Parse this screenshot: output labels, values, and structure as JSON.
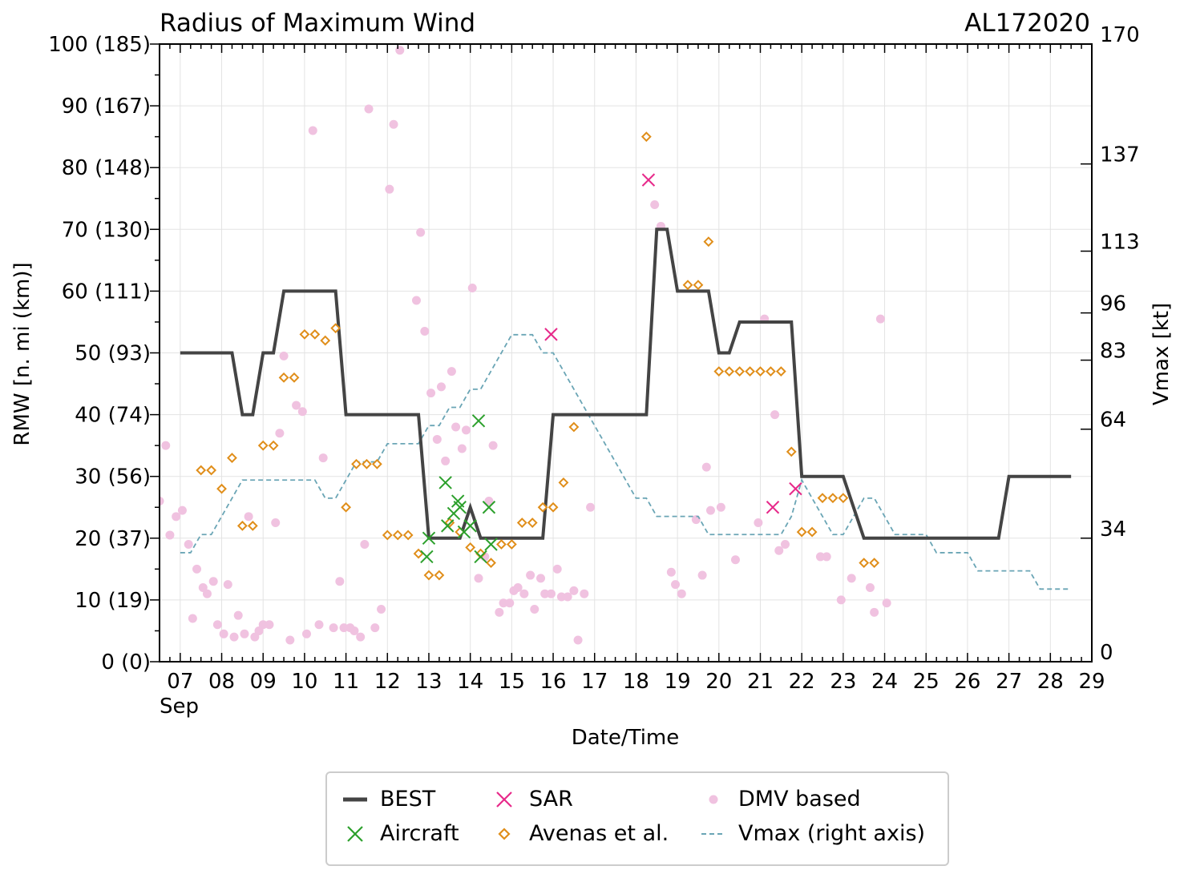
{
  "chart_data": {
    "type": "line",
    "title": "Radius of Maximum Wind",
    "storm_id": "AL172020",
    "xlabel": "Date/Time",
    "ylabel": "RMW [n. mi (km)]",
    "y2label": "Vmax [kt]",
    "xlim": [
      6.5,
      29.0
    ],
    "ylim": [
      0,
      100
    ],
    "y2lim": [
      0,
      170
    ],
    "x_ticks": [
      7,
      8,
      9,
      10,
      11,
      12,
      13,
      14,
      15,
      16,
      17,
      18,
      19,
      20,
      21,
      22,
      23,
      24,
      25,
      26,
      27,
      28,
      29
    ],
    "x_tick_labels": [
      "07",
      "08",
      "09",
      "10",
      "11",
      "12",
      "13",
      "14",
      "15",
      "16",
      "17",
      "18",
      "19",
      "20",
      "21",
      "22",
      "23",
      "24",
      "25",
      "26",
      "27",
      "28",
      "29"
    ],
    "x_month_label": "Sep",
    "y_ticks": [
      0,
      10,
      20,
      30,
      40,
      50,
      60,
      70,
      80,
      90,
      100
    ],
    "y_tick_labels": [
      "0 (0)",
      "10 (19)",
      "20 (37)",
      "30 (56)",
      "40 (74)",
      "50 (93)",
      "60 (111)",
      "70 (130)",
      "80 (148)",
      "90 (167)",
      "100 (185)"
    ],
    "y2_ticks": [
      0,
      34,
      64,
      83,
      96,
      113,
      137,
      170
    ],
    "y2_tick_labels": [
      "0",
      "34",
      "64",
      "83",
      "96",
      "113",
      "137",
      "170"
    ],
    "series": [
      {
        "name": "BEST",
        "kind": "line",
        "color": "#444444",
        "points": [
          [
            7.0,
            50
          ],
          [
            8.25,
            50
          ],
          [
            8.5,
            40
          ],
          [
            8.75,
            40
          ],
          [
            9.0,
            50
          ],
          [
            9.25,
            50
          ],
          [
            9.5,
            60
          ],
          [
            10.75,
            60
          ],
          [
            11.0,
            40
          ],
          [
            12.75,
            40
          ],
          [
            13.0,
            20
          ],
          [
            13.75,
            20
          ],
          [
            14.0,
            25
          ],
          [
            14.25,
            20
          ],
          [
            15.75,
            20
          ],
          [
            16.0,
            40
          ],
          [
            18.25,
            40
          ],
          [
            18.5,
            70
          ],
          [
            18.75,
            70
          ],
          [
            19.0,
            60
          ],
          [
            19.75,
            60
          ],
          [
            20.0,
            50
          ],
          [
            20.25,
            50
          ],
          [
            20.5,
            55
          ],
          [
            21.75,
            55
          ],
          [
            22.0,
            30
          ],
          [
            23.0,
            30
          ],
          [
            23.5,
            20
          ],
          [
            26.75,
            20
          ],
          [
            27.0,
            30
          ],
          [
            28.5,
            30
          ]
        ]
      },
      {
        "name": "Aircraft",
        "kind": "x",
        "color": "#2ca02c",
        "points": [
          [
            12.95,
            17
          ],
          [
            13.0,
            20
          ],
          [
            13.4,
            29
          ],
          [
            13.45,
            22
          ],
          [
            13.6,
            24
          ],
          [
            13.7,
            26
          ],
          [
            13.75,
            25
          ],
          [
            13.85,
            21
          ],
          [
            14.0,
            22
          ],
          [
            14.2,
            39
          ],
          [
            14.25,
            17
          ],
          [
            14.45,
            25
          ],
          [
            14.5,
            19
          ]
        ]
      },
      {
        "name": "SAR",
        "kind": "x",
        "color": "#e7298a",
        "points": [
          [
            15.95,
            53
          ],
          [
            18.3,
            78
          ],
          [
            21.3,
            25
          ],
          [
            21.85,
            28
          ]
        ]
      },
      {
        "name": "Avenas et al.",
        "kind": "diamond",
        "color": "#e08e1a",
        "points": [
          [
            7.5,
            31
          ],
          [
            7.75,
            31
          ],
          [
            8.0,
            28
          ],
          [
            8.25,
            33
          ],
          [
            8.5,
            22
          ],
          [
            8.75,
            22
          ],
          [
            9.0,
            35
          ],
          [
            9.25,
            35
          ],
          [
            9.5,
            46
          ],
          [
            9.75,
            46
          ],
          [
            10.0,
            53
          ],
          [
            10.25,
            53
          ],
          [
            10.5,
            52
          ],
          [
            10.75,
            54
          ],
          [
            11.0,
            25
          ],
          [
            11.25,
            32
          ],
          [
            11.5,
            32
          ],
          [
            11.75,
            32
          ],
          [
            12.0,
            20.5
          ],
          [
            12.25,
            20.5
          ],
          [
            12.5,
            20.5
          ],
          [
            12.75,
            17.5
          ],
          [
            13.0,
            14
          ],
          [
            13.25,
            14
          ],
          [
            13.5,
            22.5
          ],
          [
            13.75,
            21
          ],
          [
            14.0,
            18.5
          ],
          [
            14.25,
            17.5
          ],
          [
            14.5,
            16
          ],
          [
            14.75,
            19
          ],
          [
            15.0,
            19
          ],
          [
            15.25,
            22.5
          ],
          [
            15.5,
            22.5
          ],
          [
            15.75,
            25
          ],
          [
            16.0,
            25
          ],
          [
            16.25,
            29
          ],
          [
            16.5,
            38
          ],
          [
            18.25,
            85
          ],
          [
            19.25,
            61
          ],
          [
            19.5,
            61
          ],
          [
            19.75,
            68
          ],
          [
            20.0,
            47
          ],
          [
            20.25,
            47
          ],
          [
            20.5,
            47
          ],
          [
            20.75,
            47
          ],
          [
            21.0,
            47
          ],
          [
            21.25,
            47
          ],
          [
            21.5,
            47
          ],
          [
            21.75,
            34
          ],
          [
            22.0,
            21
          ],
          [
            22.25,
            21
          ],
          [
            22.5,
            26.5
          ],
          [
            22.75,
            26.5
          ],
          [
            23.0,
            26.5
          ],
          [
            23.5,
            16
          ],
          [
            23.75,
            16
          ]
        ]
      },
      {
        "name": "DMV based",
        "kind": "dot",
        "color": "#f0c2e0",
        "points": [
          [
            6.5,
            26
          ],
          [
            6.65,
            35
          ],
          [
            6.75,
            20.5
          ],
          [
            6.9,
            23.5
          ],
          [
            7.05,
            24.5
          ],
          [
            7.2,
            19
          ],
          [
            7.3,
            7
          ],
          [
            7.4,
            15
          ],
          [
            7.55,
            12
          ],
          [
            7.65,
            11
          ],
          [
            7.8,
            13
          ],
          [
            7.9,
            6
          ],
          [
            8.05,
            4.5
          ],
          [
            8.15,
            12.5
          ],
          [
            8.3,
            4
          ],
          [
            8.4,
            7.5
          ],
          [
            8.55,
            4.5
          ],
          [
            8.65,
            23.5
          ],
          [
            8.8,
            4
          ],
          [
            8.9,
            5
          ],
          [
            9.0,
            6
          ],
          [
            9.15,
            6
          ],
          [
            9.3,
            22.5
          ],
          [
            9.4,
            37
          ],
          [
            9.5,
            49.5
          ],
          [
            9.65,
            3.5
          ],
          [
            9.8,
            41.5
          ],
          [
            9.95,
            40.5
          ],
          [
            10.05,
            4.5
          ],
          [
            10.2,
            86
          ],
          [
            10.35,
            6
          ],
          [
            10.45,
            33
          ],
          [
            10.7,
            5.5
          ],
          [
            10.85,
            13
          ],
          [
            10.95,
            5.5
          ],
          [
            11.1,
            5.5
          ],
          [
            11.2,
            5
          ],
          [
            11.35,
            4
          ],
          [
            11.45,
            19
          ],
          [
            11.55,
            89.5
          ],
          [
            11.7,
            5.5
          ],
          [
            11.85,
            8.5
          ],
          [
            12.05,
            76.5
          ],
          [
            12.15,
            87
          ],
          [
            12.3,
            99
          ],
          [
            12.7,
            58.5
          ],
          [
            12.8,
            69.5
          ],
          [
            12.9,
            53.5
          ],
          [
            13.05,
            43.5
          ],
          [
            13.2,
            36
          ],
          [
            13.3,
            44.5
          ],
          [
            13.4,
            32.5
          ],
          [
            13.55,
            47
          ],
          [
            13.65,
            38
          ],
          [
            13.8,
            34.5
          ],
          [
            13.9,
            37.5
          ],
          [
            14.05,
            60.5
          ],
          [
            14.2,
            13.5
          ],
          [
            14.35,
            17
          ],
          [
            14.45,
            26
          ],
          [
            14.55,
            35
          ],
          [
            14.7,
            8
          ],
          [
            14.8,
            9.5
          ],
          [
            14.95,
            9.5
          ],
          [
            15.05,
            11.5
          ],
          [
            15.15,
            12
          ],
          [
            15.3,
            11
          ],
          [
            15.45,
            14
          ],
          [
            15.55,
            8.5
          ],
          [
            15.7,
            13.5
          ],
          [
            15.8,
            11
          ],
          [
            15.95,
            11
          ],
          [
            16.1,
            15
          ],
          [
            16.2,
            10.5
          ],
          [
            16.35,
            10.5
          ],
          [
            16.5,
            11.5
          ],
          [
            16.6,
            3.5
          ],
          [
            16.75,
            11
          ],
          [
            16.9,
            25
          ],
          [
            18.45,
            74
          ],
          [
            18.6,
            70.5
          ],
          [
            18.85,
            14.5
          ],
          [
            18.95,
            12.5
          ],
          [
            19.1,
            11
          ],
          [
            19.45,
            23
          ],
          [
            19.6,
            14
          ],
          [
            19.7,
            31.5
          ],
          [
            19.8,
            24.5
          ],
          [
            20.05,
            25
          ],
          [
            20.4,
            16.5
          ],
          [
            20.95,
            22.5
          ],
          [
            21.1,
            55.5
          ],
          [
            21.35,
            40
          ],
          [
            21.45,
            18
          ],
          [
            21.6,
            19
          ],
          [
            22.45,
            17
          ],
          [
            22.6,
            17
          ],
          [
            22.95,
            10
          ],
          [
            23.2,
            13.5
          ],
          [
            23.65,
            12
          ],
          [
            23.75,
            8
          ],
          [
            23.9,
            55.5
          ],
          [
            24.05,
            9.5
          ]
        ]
      },
      {
        "name": "Vmax (right axis)",
        "kind": "dashed",
        "color": "#6aa5b5",
        "axis": "right",
        "points": [
          [
            7.0,
            30
          ],
          [
            7.25,
            30
          ],
          [
            7.5,
            35
          ],
          [
            7.75,
            35
          ],
          [
            8.0,
            40
          ],
          [
            8.5,
            50
          ],
          [
            10.25,
            50
          ],
          [
            10.5,
            45
          ],
          [
            10.75,
            45
          ],
          [
            11.0,
            50
          ],
          [
            11.25,
            55
          ],
          [
            11.75,
            55
          ],
          [
            12.0,
            60
          ],
          [
            12.75,
            60
          ],
          [
            13.0,
            65
          ],
          [
            13.25,
            65
          ],
          [
            13.5,
            70
          ],
          [
            13.75,
            70
          ],
          [
            14.0,
            75
          ],
          [
            14.25,
            75
          ],
          [
            14.5,
            80
          ],
          [
            15.0,
            90
          ],
          [
            15.5,
            90
          ],
          [
            15.75,
            85
          ],
          [
            16.0,
            85
          ],
          [
            16.5,
            75
          ],
          [
            17.0,
            65
          ],
          [
            17.5,
            55
          ],
          [
            18.0,
            45
          ],
          [
            18.25,
            45
          ],
          [
            18.5,
            40
          ],
          [
            19.5,
            40
          ],
          [
            19.75,
            35
          ],
          [
            21.5,
            35
          ],
          [
            21.75,
            40
          ],
          [
            22.0,
            50
          ],
          [
            22.25,
            45
          ],
          [
            22.5,
            40
          ],
          [
            22.75,
            35
          ],
          [
            23.0,
            35
          ],
          [
            23.25,
            40
          ],
          [
            23.5,
            45
          ],
          [
            23.75,
            45
          ],
          [
            24.0,
            40
          ],
          [
            24.25,
            35
          ],
          [
            25.0,
            35
          ],
          [
            25.25,
            30
          ],
          [
            26.0,
            30
          ],
          [
            26.25,
            25
          ],
          [
            27.5,
            25
          ],
          [
            27.75,
            20
          ],
          [
            28.5,
            20
          ]
        ]
      }
    ],
    "legend": {
      "position": "bottom-center",
      "entries": [
        {
          "label": "BEST",
          "kind": "line",
          "color": "#444444"
        },
        {
          "label": "Aircraft",
          "kind": "x",
          "color": "#2ca02c"
        },
        {
          "label": "SAR",
          "kind": "x",
          "color": "#e7298a"
        },
        {
          "label": "Avenas et al.",
          "kind": "diamond",
          "color": "#e08e1a"
        },
        {
          "label": "DMV based",
          "kind": "dot",
          "color": "#f0c2e0"
        },
        {
          "label": "Vmax (right axis)",
          "kind": "dashed",
          "color": "#6aa5b5"
        }
      ]
    }
  }
}
